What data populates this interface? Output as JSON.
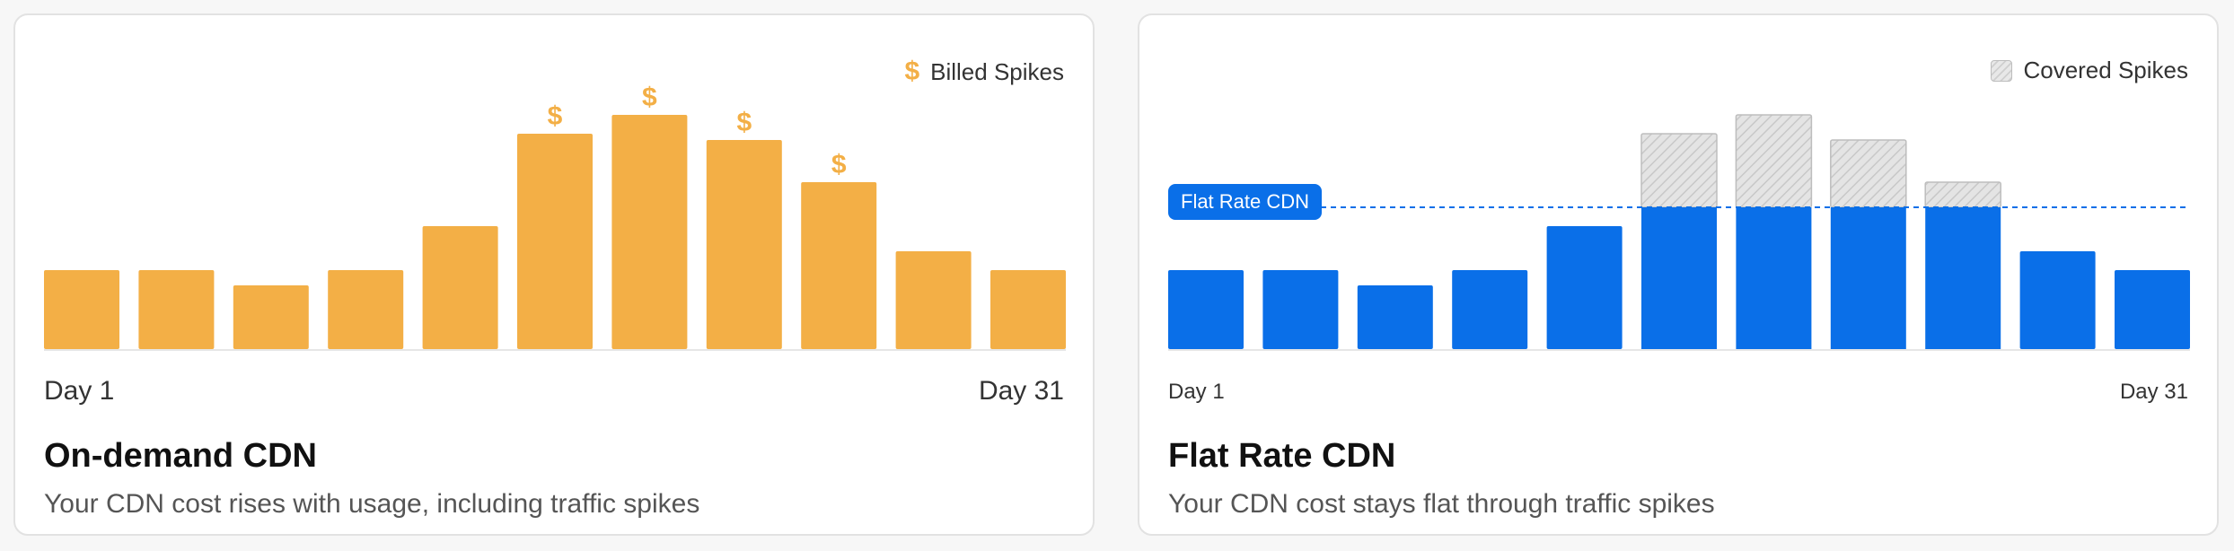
{
  "colors": {
    "on_demand_bar": "#f3af46",
    "flat_bar": "#0a6fe8",
    "covered_fill": "#e4e4e4",
    "covered_stroke": "#bdbdbd",
    "baseline": "#e6e6e6"
  },
  "left_card": {
    "legend_icon": "dollar-icon",
    "legend_symbol": "$",
    "legend_label": "Billed Spikes",
    "x_start": "Day 1",
    "x_end": "Day 31",
    "title": "On-demand CDN",
    "subtitle": "Your CDN cost rises with usage, including traffic spikes"
  },
  "right_card": {
    "legend_icon": "hatched-swatch-icon",
    "legend_label": "Covered Spikes",
    "flat_rate_label": "Flat Rate CDN",
    "x_start": "Day 1",
    "x_end": "Day 31",
    "title": "Flat Rate CDN",
    "subtitle": "Your CDN cost stays flat through traffic spikes"
  },
  "chart_data": [
    {
      "type": "bar",
      "series": [
        {
          "values": [
            88,
            88,
            71,
            88,
            137,
            240,
            261,
            233,
            186,
            109,
            88
          ]
        }
      ],
      "marked_bars": [
        5,
        6,
        7,
        8
      ],
      "marker": "$",
      "ylim": [
        0,
        300
      ],
      "grid": false,
      "legend": "top-right"
    },
    {
      "type": "bar",
      "series": [
        {
          "values": [
            88,
            88,
            71,
            88,
            137,
            240,
            261,
            233,
            186,
            109,
            88
          ]
        }
      ],
      "flat_rate": 158,
      "ylim": [
        0,
        300
      ],
      "grid": false,
      "legend": "top-right"
    }
  ]
}
